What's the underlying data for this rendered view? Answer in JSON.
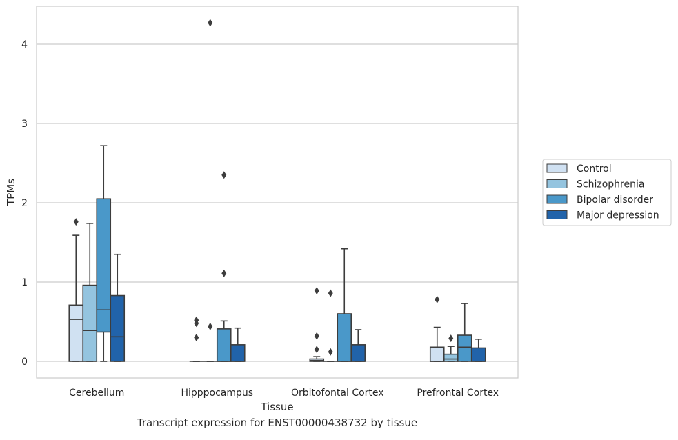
{
  "caption": "Transcript expression for ENST00000438732 by tissue",
  "chart_data": {
    "type": "box",
    "xlabel": "Tissue",
    "ylabel": "TPMs",
    "ylim": [
      -0.2,
      4.5
    ],
    "yticks": [
      0,
      1,
      2,
      3,
      4
    ],
    "grid": true,
    "legend_position": "right",
    "categories": [
      "Cerebellum",
      "Hipppocampus",
      "Orbitofontal Cortex",
      "Prefrontal Cortex"
    ],
    "series": [
      {
        "name": "Control",
        "color": "#d0e1f2",
        "boxes": [
          {
            "whisker_low": 0,
            "q1": 0,
            "median": 0.53,
            "q3": 0.71,
            "whisker_high": 1.59,
            "outliers": [
              1.76
            ]
          },
          {
            "whisker_low": 0,
            "q1": 0,
            "median": 0,
            "q3": 0,
            "whisker_high": 0,
            "outliers": [
              0.3,
              0.48,
              0.52
            ]
          },
          {
            "whisker_low": 0,
            "q1": 0,
            "median": 0.01,
            "q3": 0.03,
            "whisker_high": 0.06,
            "outliers": [
              0.15,
              0.32,
              0.89
            ]
          },
          {
            "whisker_low": 0,
            "q1": 0,
            "median": 0,
            "q3": 0.18,
            "whisker_high": 0.43,
            "outliers": [
              0.78
            ]
          }
        ]
      },
      {
        "name": "Schizophrenia",
        "color": "#94c4df",
        "boxes": [
          {
            "whisker_low": 0,
            "q1": 0,
            "median": 0.39,
            "q3": 0.96,
            "whisker_high": 1.74,
            "outliers": []
          },
          {
            "whisker_low": 0,
            "q1": 0,
            "median": 0,
            "q3": 0,
            "whisker_high": 0,
            "outliers": [
              0.44,
              4.27
            ]
          },
          {
            "whisker_low": 0,
            "q1": 0,
            "median": 0,
            "q3": 0,
            "whisker_high": 0,
            "outliers": [
              0.12,
              0.86
            ]
          },
          {
            "whisker_low": 0,
            "q1": 0,
            "median": 0.03,
            "q3": 0.09,
            "whisker_high": 0.19,
            "outliers": [
              0.29
            ]
          }
        ]
      },
      {
        "name": "Bipolar disorder",
        "color": "#4a98c9",
        "boxes": [
          {
            "whisker_low": 0,
            "q1": 0.37,
            "median": 0.65,
            "q3": 2.05,
            "whisker_high": 2.72,
            "outliers": []
          },
          {
            "whisker_low": 0,
            "q1": 0,
            "median": 0,
            "q3": 0.41,
            "whisker_high": 0.51,
            "outliers": [
              1.11,
              2.35
            ]
          },
          {
            "whisker_low": 0,
            "q1": 0,
            "median": 0,
            "q3": 0.6,
            "whisker_high": 1.42,
            "outliers": []
          },
          {
            "whisker_low": 0,
            "q1": 0,
            "median": 0.18,
            "q3": 0.33,
            "whisker_high": 0.73,
            "outliers": []
          }
        ]
      },
      {
        "name": "Major depression",
        "color": "#2163aa",
        "boxes": [
          {
            "whisker_low": 0,
            "q1": 0,
            "median": 0.31,
            "q3": 0.83,
            "whisker_high": 1.35,
            "outliers": []
          },
          {
            "whisker_low": 0,
            "q1": 0,
            "median": 0,
            "q3": 0.21,
            "whisker_high": 0.42,
            "outliers": []
          },
          {
            "whisker_low": 0,
            "q1": 0,
            "median": 0,
            "q3": 0.21,
            "whisker_high": 0.4,
            "outliers": []
          },
          {
            "whisker_low": 0,
            "q1": 0,
            "median": 0,
            "q3": 0.17,
            "whisker_high": 0.28,
            "outliers": []
          }
        ]
      }
    ]
  }
}
